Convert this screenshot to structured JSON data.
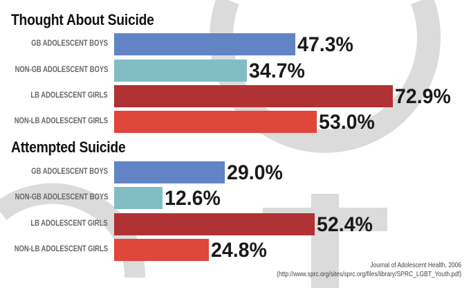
{
  "chart_data": [
    {
      "type": "bar",
      "orientation": "horizontal",
      "title": "Thought About Suicide",
      "categories": [
        "GB ADOLESCENT BOYS",
        "NON-GB ADOLESCENT BOYS",
        "LB ADOLESCENT GIRLS",
        "NON-LB ADOLESCENT GIRLS"
      ],
      "values": [
        47.3,
        34.7,
        72.9,
        53.0
      ],
      "labels": [
        "47.3%",
        "34.7%",
        "72.9%",
        "53.0%"
      ],
      "colors": [
        "#6185c4",
        "#80bec4",
        "#b03234",
        "#de4739"
      ],
      "grid": false
    },
    {
      "type": "bar",
      "orientation": "horizontal",
      "title": "Attempted Suicide",
      "categories": [
        "GB ADOLESCENT BOYS",
        "NON-GB ADOLESCENT BOYS",
        "LB ADOLESCENT GIRLS",
        "NON-LB ADOLESCENT GIRLS"
      ],
      "values": [
        29.0,
        12.6,
        52.4,
        24.8
      ],
      "labels": [
        "29.0%",
        "12.6%",
        "52.4%",
        "24.8%"
      ],
      "colors": [
        "#6185c4",
        "#80bec4",
        "#b03234",
        "#de4739"
      ],
      "grid": false
    }
  ],
  "source": {
    "line1": "Journal of Adolescent Health, 2006",
    "line2": "(http://www.sprc.org/sites/sprc.org/files/library/SPRC_LGBT_Youth.pdf)"
  },
  "background_symbols": [
    "female-symbol",
    "male-symbol"
  ],
  "background_color": "#dcdbdc"
}
